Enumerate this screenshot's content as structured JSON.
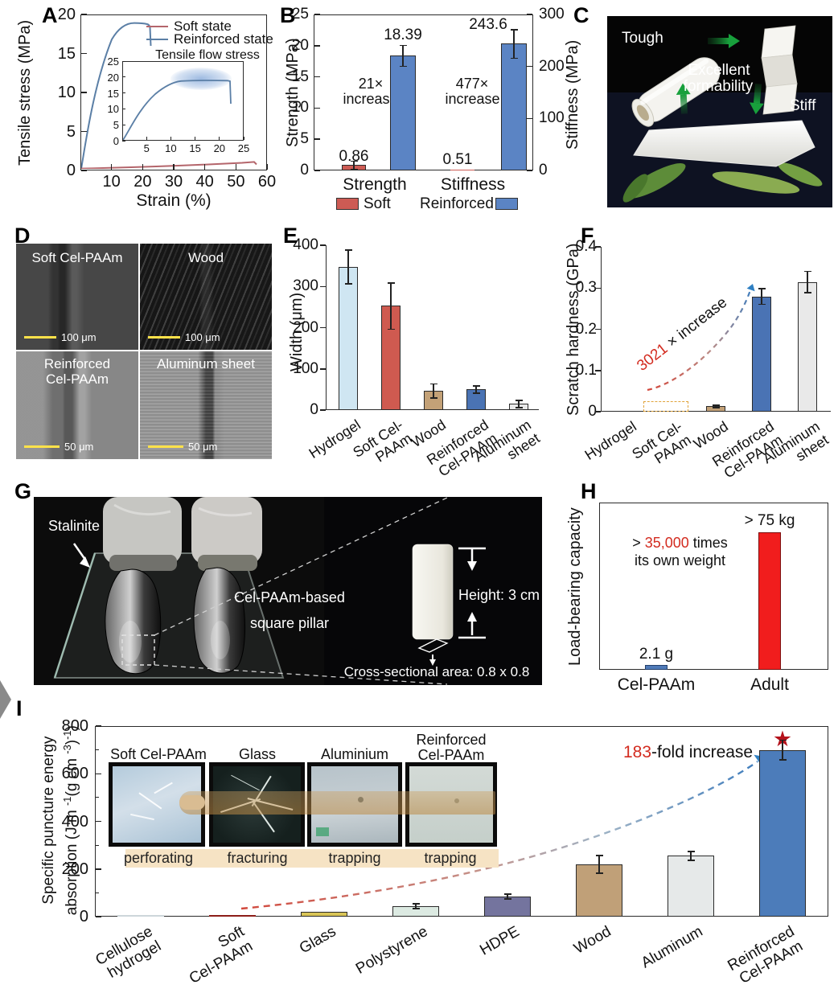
{
  "panels": {
    "A": {
      "label": "A"
    },
    "B": {
      "label": "B",
      "value_labels": [
        "0.86",
        "18.39",
        "0.51",
        "243.6"
      ],
      "ann1_l1": "21×",
      "ann1_l2": "increase",
      "ann2_l1": "477×",
      "ann2_l2": "increase",
      "groups": [
        "Strength",
        "Stiffness"
      ]
    },
    "C": {
      "label": "C",
      "tough": "Tough",
      "excellent": "Excellent",
      "formability": "formability",
      "stiff": "Stiff"
    },
    "D": {
      "label": "D",
      "tiles": [
        {
          "line1": "Soft Cel-PAAm",
          "line2": "",
          "scale": "100 μm"
        },
        {
          "line1": "Wood",
          "line2": "",
          "scale": "100 μm"
        },
        {
          "line1": "Reinforced",
          "line2": "Cel-PAAm",
          "scale": "50 μm"
        },
        {
          "line1": "Aluminum sheet",
          "line2": "",
          "scale": "50 μm"
        }
      ]
    },
    "E": {
      "label": "E"
    },
    "F": {
      "label": "F",
      "ann_red": "3021",
      "ann_black": " × increase"
    },
    "G": {
      "label": "G",
      "stalinite": "Stalinite",
      "pillar_l1": "Cel-PAAm-based",
      "pillar_l2": "square pillar",
      "height_label": "Height: 3 cm",
      "cross_label": "Cross-sectional area: 0.8 x 0.8 cm"
    },
    "H": {
      "label": "H",
      "ann_pre": "> ",
      "ann_red": "35,000",
      "ann_post": " times",
      "ann_l2": "its own weight"
    },
    "I": {
      "label": "I",
      "ylabel_line1": "Specific puncture energy",
      "yl2": {
        "p1": "absorption (J m ",
        "s1": "-1",
        "p2": "(g cm ",
        "s2": "-3",
        "p3": ")",
        "s3": "-1",
        "p4": ")"
      },
      "ann_red": "183",
      "ann_black": "-fold increase"
    }
  },
  "chart_data": [
    {
      "id": "A",
      "type": "line",
      "xlabel": "Strain (%)",
      "ylabel": "Tensile stress (MPa)",
      "xlim": [
        0,
        60
      ],
      "ylim": [
        0,
        20
      ],
      "xticks": [
        10,
        20,
        30,
        40,
        50,
        60
      ],
      "yticks": [
        0,
        5,
        10,
        15,
        20
      ],
      "grid": false,
      "legend_position": "upper right",
      "series": [
        {
          "name": "Soft state",
          "color": "#b4656b",
          "x": [
            0,
            10,
            20,
            30,
            40,
            50,
            57,
            57.5
          ],
          "y": [
            0,
            0.12,
            0.28,
            0.45,
            0.62,
            0.8,
            0.9,
            0.72
          ]
        },
        {
          "name": "Reinforced state",
          "color": "#5b7fa6",
          "x": [
            0,
            2,
            5,
            8,
            11,
            14,
            17,
            20,
            22,
            22.4
          ],
          "y": [
            0,
            3.5,
            9,
            13.5,
            16.5,
            18.4,
            19,
            18.9,
            18.6,
            16
          ]
        }
      ],
      "inset": {
        "title": "Tensile flow stress",
        "xlim": [
          0,
          25
        ],
        "ylim": [
          0,
          25
        ],
        "xticks": [
          5,
          10,
          15,
          20,
          25
        ],
        "yticks": [
          0,
          5,
          10,
          15,
          20,
          25
        ],
        "note": "blue highlight marks plateau (flow stress) region"
      }
    },
    {
      "id": "B",
      "type": "bar",
      "categories": [
        "Strength",
        "Stiffness"
      ],
      "axes": {
        "left": {
          "label": "Strength (MPa)",
          "lim": [
            0,
            25
          ],
          "ticks": [
            0,
            5,
            10,
            15,
            20,
            25
          ]
        },
        "right": {
          "label": "Stiffness (MPa)",
          "lim": [
            0,
            300
          ],
          "ticks": [
            0,
            100,
            200,
            300
          ]
        }
      },
      "series": [
        {
          "name": "Soft",
          "color": "#cd5b54",
          "values": [
            0.86,
            0.51
          ],
          "errors": [
            0.6,
            0
          ]
        },
        {
          "name": "Reinforced",
          "color": "#5b84c4",
          "values": [
            18.39,
            243.6
          ],
          "errors": [
            1.6,
            27
          ]
        }
      ],
      "value_labels": [
        "0.86",
        "18.39",
        "0.51",
        "243.6"
      ],
      "annotations": [
        "21× increase",
        "477× increase"
      ]
    },
    {
      "id": "E",
      "type": "bar",
      "ylabel": "Width (μm)",
      "ylim": [
        0,
        400
      ],
      "yticks": [
        0,
        100,
        200,
        300,
        400
      ],
      "categories": [
        "Hydrogel",
        "Soft Cel-PAAm",
        "Wood",
        "Reinforced\nCel-PAAm",
        "Aluminum\nsheet"
      ],
      "values": [
        348,
        253,
        47,
        50,
        15
      ],
      "errors": [
        40,
        55,
        16,
        8,
        8
      ],
      "colors": [
        "#cfe6f2",
        "#cf5a50",
        "#c3a177",
        "#4a73b4",
        "#e9e9e9"
      ]
    },
    {
      "id": "F",
      "type": "bar",
      "ylabel": "Scratch hardness (GPa)",
      "ylim": [
        0,
        0.4
      ],
      "yticks": [
        "0",
        "0.1",
        "0.2",
        "0.3",
        "0.4"
      ],
      "categories": [
        "Hydrogel",
        "Soft Cel-PAAm",
        "Wood",
        "Reinforced\nCel-PAAm",
        "Aluminum\nsheet"
      ],
      "values": [
        0,
        0.0001,
        0.013,
        0.28,
        0.315
      ],
      "errors": [
        0,
        0,
        0.002,
        0.018,
        0.025
      ],
      "colors": [
        "",
        "#e0a43c",
        "#c3a177",
        "#4a73b4",
        "#e9e9e9"
      ],
      "annotation": "3021 × increase",
      "note": "Hydrogel and Soft Cel-PAAm not measurable; Soft Cel-PAAm shown as dashed outline box"
    },
    {
      "id": "H",
      "type": "bar",
      "ylabel": "Load-bearing capacity",
      "categories": [
        "Cel-PAAm",
        "Adult"
      ],
      "values_text": [
        "2.1 g",
        "> 75 kg"
      ],
      "colors": [
        "#4f7ab8",
        "#f11d1d"
      ],
      "annotation": "> 35,000 times its own weight"
    },
    {
      "id": "I",
      "type": "bar",
      "ylabel": "Specific puncture energy absorption (J m-1 (g cm-3)-1)",
      "ylim": [
        0,
        800
      ],
      "yticks": [
        0,
        200,
        400,
        600,
        800
      ],
      "categories": [
        "Cellulose\nhydrogel",
        "Soft\nCel-PAAm",
        "Glass",
        "Polystyrene",
        "HDPE",
        "Wood",
        "Aluminum",
        "Reinforced\nCel-PAAm"
      ],
      "values": [
        2,
        5,
        20,
        45,
        85,
        220,
        255,
        700
      ],
      "errors": [
        0,
        0,
        4,
        8,
        8,
        35,
        17,
        40
      ],
      "colors": [
        "#cdd6da",
        "#8c1d18",
        "#d9c557",
        "#dceae2",
        "#74749e",
        "#c0a078",
        "#e6e9e9",
        "#4c7cba"
      ],
      "annotation": "183-fold increase",
      "star_marker": "★",
      "inset_photos": [
        {
          "label": "Soft Cel-PAAm",
          "caption": "perforating"
        },
        {
          "label": "Glass",
          "caption": "fracturing"
        },
        {
          "label": "Aluminium",
          "caption": "trapping"
        },
        {
          "label_l1": "Reinforced",
          "label_l2": "Cel-PAAm",
          "caption": "trapping"
        }
      ]
    }
  ]
}
